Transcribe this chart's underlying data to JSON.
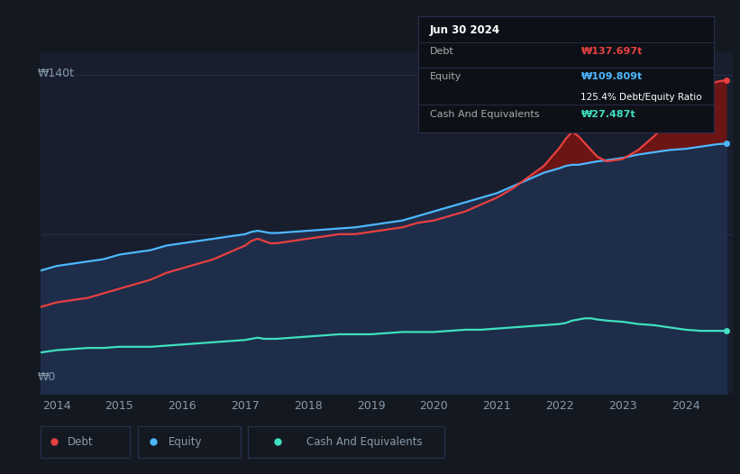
{
  "background_color": "#141921",
  "plot_bg_color": "#181e2d",
  "tooltip": {
    "date": "Jun 30 2024",
    "debt_label": "Debt",
    "debt_value": "₩137.697t",
    "equity_label": "Equity",
    "equity_value": "₩109.809t",
    "ratio": "125.4% Debt/Equity Ratio",
    "cash_label": "Cash And Equivalents",
    "cash_value": "₩27.487t"
  },
  "ylabel_top": "₩140t",
  "ylabel_bottom": "₩0",
  "debt_color": "#e84040",
  "equity_color": "#4db8ff",
  "cash_color": "#40e0c0",
  "debt_fill_color": "#6b1515",
  "equity_fill_color": "#1e2d4a",
  "cash_fill_color": "#153838",
  "x_min": 2013.75,
  "x_max": 2024.75,
  "y_min": 0,
  "y_max": 150,
  "x_ticks": [
    2014,
    2015,
    2016,
    2017,
    2018,
    2019,
    2020,
    2021,
    2022,
    2023,
    2024
  ],
  "grid_color": "#2a3050",
  "tick_color": "#8899aa",
  "debt_curve": [
    [
      2013.75,
      38
    ],
    [
      2014.0,
      40
    ],
    [
      2014.25,
      41
    ],
    [
      2014.5,
      42
    ],
    [
      2014.75,
      44
    ],
    [
      2015.0,
      46
    ],
    [
      2015.25,
      48
    ],
    [
      2015.5,
      50
    ],
    [
      2015.75,
      53
    ],
    [
      2016.0,
      55
    ],
    [
      2016.25,
      57
    ],
    [
      2016.5,
      59
    ],
    [
      2016.75,
      62
    ],
    [
      2017.0,
      65
    ],
    [
      2017.1,
      67
    ],
    [
      2017.2,
      68
    ],
    [
      2017.3,
      67
    ],
    [
      2017.4,
      66
    ],
    [
      2017.5,
      66
    ],
    [
      2017.75,
      67
    ],
    [
      2018.0,
      68
    ],
    [
      2018.25,
      69
    ],
    [
      2018.5,
      70
    ],
    [
      2018.75,
      70
    ],
    [
      2019.0,
      71
    ],
    [
      2019.25,
      72
    ],
    [
      2019.5,
      73
    ],
    [
      2019.75,
      75
    ],
    [
      2020.0,
      76
    ],
    [
      2020.25,
      78
    ],
    [
      2020.5,
      80
    ],
    [
      2020.75,
      83
    ],
    [
      2021.0,
      86
    ],
    [
      2021.25,
      90
    ],
    [
      2021.5,
      95
    ],
    [
      2021.75,
      100
    ],
    [
      2022.0,
      108
    ],
    [
      2022.1,
      112
    ],
    [
      2022.2,
      115
    ],
    [
      2022.3,
      113
    ],
    [
      2022.4,
      110
    ],
    [
      2022.5,
      107
    ],
    [
      2022.6,
      104
    ],
    [
      2022.75,
      102
    ],
    [
      2023.0,
      103
    ],
    [
      2023.25,
      107
    ],
    [
      2023.5,
      113
    ],
    [
      2023.75,
      120
    ],
    [
      2024.0,
      128
    ],
    [
      2024.25,
      133
    ],
    [
      2024.5,
      137
    ],
    [
      2024.65,
      137.697
    ]
  ],
  "equity_curve": [
    [
      2013.75,
      54
    ],
    [
      2014.0,
      56
    ],
    [
      2014.25,
      57
    ],
    [
      2014.5,
      58
    ],
    [
      2014.75,
      59
    ],
    [
      2015.0,
      61
    ],
    [
      2015.25,
      62
    ],
    [
      2015.5,
      63
    ],
    [
      2015.75,
      65
    ],
    [
      2016.0,
      66
    ],
    [
      2016.25,
      67
    ],
    [
      2016.5,
      68
    ],
    [
      2016.75,
      69
    ],
    [
      2017.0,
      70
    ],
    [
      2017.1,
      71
    ],
    [
      2017.2,
      71.5
    ],
    [
      2017.3,
      71
    ],
    [
      2017.4,
      70.5
    ],
    [
      2017.5,
      70.5
    ],
    [
      2017.75,
      71
    ],
    [
      2018.0,
      71.5
    ],
    [
      2018.25,
      72
    ],
    [
      2018.5,
      72.5
    ],
    [
      2018.75,
      73
    ],
    [
      2019.0,
      74
    ],
    [
      2019.25,
      75
    ],
    [
      2019.5,
      76
    ],
    [
      2019.75,
      78
    ],
    [
      2020.0,
      80
    ],
    [
      2020.25,
      82
    ],
    [
      2020.5,
      84
    ],
    [
      2020.75,
      86
    ],
    [
      2021.0,
      88
    ],
    [
      2021.25,
      91
    ],
    [
      2021.5,
      94
    ],
    [
      2021.75,
      97
    ],
    [
      2022.0,
      99
    ],
    [
      2022.1,
      100
    ],
    [
      2022.2,
      100.5
    ],
    [
      2022.3,
      100.5
    ],
    [
      2022.4,
      101
    ],
    [
      2022.5,
      101.5
    ],
    [
      2022.6,
      102
    ],
    [
      2022.75,
      102.5
    ],
    [
      2023.0,
      103.5
    ],
    [
      2023.25,
      105
    ],
    [
      2023.5,
      106
    ],
    [
      2023.75,
      107
    ],
    [
      2024.0,
      107.5
    ],
    [
      2024.25,
      108.5
    ],
    [
      2024.5,
      109.5
    ],
    [
      2024.65,
      109.809
    ]
  ],
  "cash_curve": [
    [
      2013.75,
      18
    ],
    [
      2014.0,
      19
    ],
    [
      2014.25,
      19.5
    ],
    [
      2014.5,
      20
    ],
    [
      2014.75,
      20
    ],
    [
      2015.0,
      20.5
    ],
    [
      2015.25,
      20.5
    ],
    [
      2015.5,
      20.5
    ],
    [
      2015.75,
      21
    ],
    [
      2016.0,
      21.5
    ],
    [
      2016.25,
      22
    ],
    [
      2016.5,
      22.5
    ],
    [
      2016.75,
      23
    ],
    [
      2017.0,
      23.5
    ],
    [
      2017.1,
      24
    ],
    [
      2017.2,
      24.5
    ],
    [
      2017.3,
      24
    ],
    [
      2017.4,
      24
    ],
    [
      2017.5,
      24
    ],
    [
      2017.75,
      24.5
    ],
    [
      2018.0,
      25
    ],
    [
      2018.25,
      25.5
    ],
    [
      2018.5,
      26
    ],
    [
      2018.75,
      26
    ],
    [
      2019.0,
      26
    ],
    [
      2019.25,
      26.5
    ],
    [
      2019.5,
      27
    ],
    [
      2019.75,
      27
    ],
    [
      2020.0,
      27
    ],
    [
      2020.25,
      27.5
    ],
    [
      2020.5,
      28
    ],
    [
      2020.75,
      28
    ],
    [
      2021.0,
      28.5
    ],
    [
      2021.25,
      29
    ],
    [
      2021.5,
      29.5
    ],
    [
      2021.75,
      30
    ],
    [
      2022.0,
      30.5
    ],
    [
      2022.1,
      31
    ],
    [
      2022.2,
      32
    ],
    [
      2022.3,
      32.5
    ],
    [
      2022.4,
      33
    ],
    [
      2022.5,
      33
    ],
    [
      2022.6,
      32.5
    ],
    [
      2022.75,
      32
    ],
    [
      2023.0,
      31.5
    ],
    [
      2023.25,
      30.5
    ],
    [
      2023.5,
      30
    ],
    [
      2023.75,
      29
    ],
    [
      2024.0,
      28
    ],
    [
      2024.25,
      27.5
    ],
    [
      2024.5,
      27.5
    ],
    [
      2024.65,
      27.487
    ]
  ]
}
